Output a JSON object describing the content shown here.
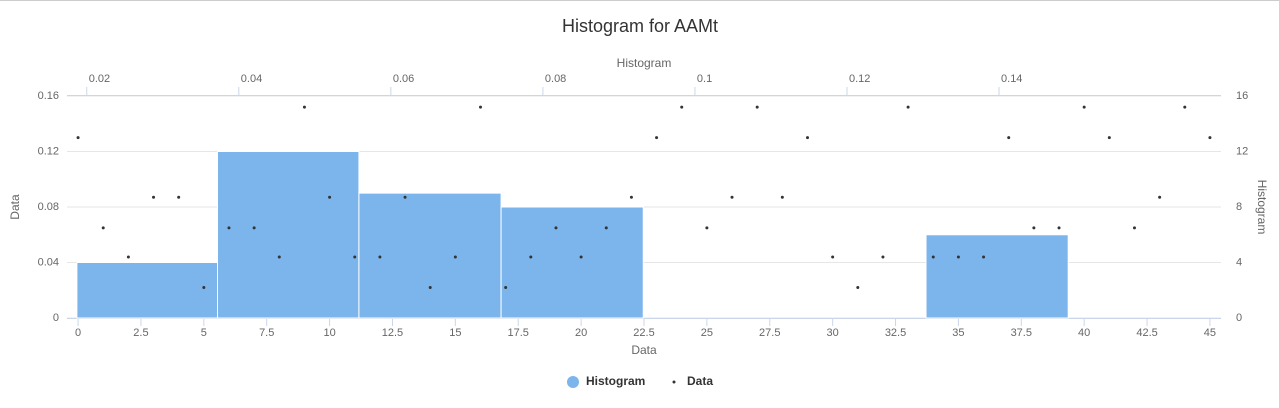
{
  "chart_data": {
    "type": "histogram",
    "title": "Histogram for AAMt",
    "x_title": "Data",
    "y_title": "Data",
    "x2_title": "Histogram",
    "y2_title": "Histogram",
    "xlim": [
      -0.44,
      45.44
    ],
    "xticks": [
      0,
      2.5,
      5,
      7.5,
      10,
      12.5,
      15,
      17.5,
      20,
      22.5,
      25,
      27.5,
      30,
      32.5,
      35,
      37.5,
      40,
      42.5,
      45
    ],
    "x2lim": [
      0.0174,
      0.1692
    ],
    "x2ticks": [
      0.02,
      0.04,
      0.06,
      0.08,
      0.1,
      0.12,
      0.14
    ],
    "ylim": [
      0,
      0.16
    ],
    "yticks": [
      0,
      0.04,
      0.08,
      0.12,
      0.16
    ],
    "y2lim": [
      0,
      16
    ],
    "y2ticks": [
      0,
      4,
      8,
      12,
      16
    ],
    "grid": true,
    "series": [
      {
        "name": "Histogram",
        "color": "#7cb5ec",
        "axis": "y2",
        "bins": [
          0.0187,
          0.0372,
          0.0558,
          0.0745,
          0.0932,
          0.1117,
          0.1304,
          0.1491
        ],
        "values": [
          4,
          12,
          9,
          8,
          0,
          0,
          6
        ]
      },
      {
        "name": "Data",
        "color": "#333333",
        "x": [
          0,
          1,
          2,
          3,
          4,
          5,
          6,
          7,
          8,
          9,
          10,
          11,
          12,
          13,
          14,
          15,
          16,
          17,
          18,
          19,
          20,
          21,
          22,
          23,
          24,
          25,
          26,
          27,
          28,
          29,
          30,
          31,
          32,
          33,
          34,
          35,
          36,
          37,
          38,
          39,
          40,
          41,
          42,
          43,
          44,
          45
        ],
        "values": [
          0.13,
          0.065,
          0.044,
          0.087,
          0.087,
          0.022,
          0.065,
          0.065,
          0.044,
          0.152,
          0.087,
          0.044,
          0.044,
          0.087,
          0.022,
          0.044,
          0.152,
          0.022,
          0.044,
          0.065,
          0.044,
          0.065,
          0.087,
          0.13,
          0.152,
          0.065,
          0.087,
          0.152,
          0.087,
          0.13,
          0.044,
          0.022,
          0.044,
          0.152,
          0.044,
          0.044,
          0.044,
          0.13,
          0.065,
          0.065,
          0.152,
          0.13,
          0.065,
          0.087,
          0.152,
          0.13
        ]
      }
    ]
  }
}
